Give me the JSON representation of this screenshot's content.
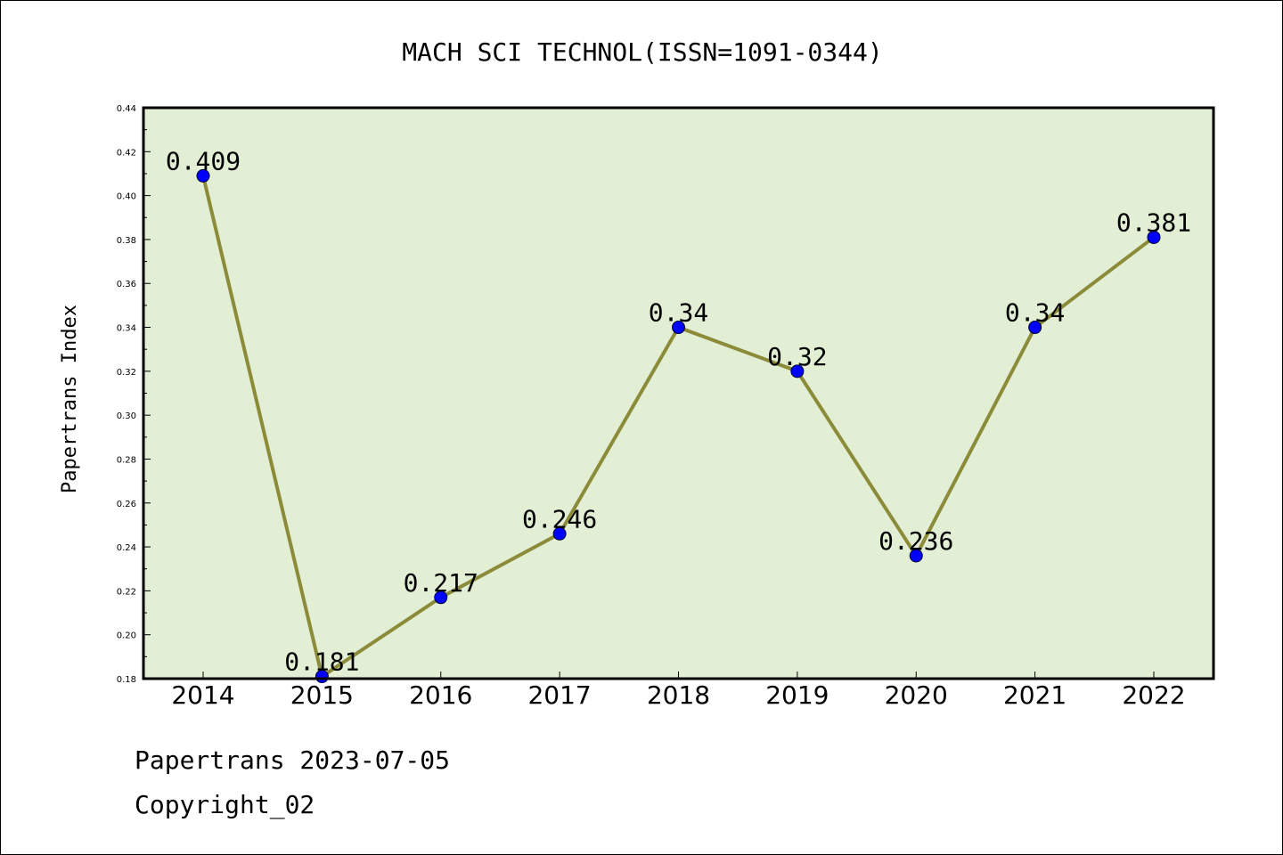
{
  "chart_data": {
    "type": "line",
    "title": "MACH SCI TECHNOL(ISSN=1091-0344)",
    "xlabel": "",
    "ylabel": "Papertrans Index",
    "categories": [
      "2014",
      "2015",
      "2016",
      "2017",
      "2018",
      "2019",
      "2020",
      "2021",
      "2022"
    ],
    "values": [
      0.409,
      0.181,
      0.217,
      0.246,
      0.34,
      0.32,
      0.236,
      0.34,
      0.381
    ],
    "data_labels": [
      "0.409",
      "0.181",
      "0.217",
      "0.246",
      "0.34",
      "0.32",
      "0.236",
      "0.34",
      "0.381"
    ],
    "ylim": [
      0.18,
      0.44
    ],
    "yticks": [
      "0.18",
      "0.20",
      "0.22",
      "0.24",
      "0.26",
      "0.28",
      "0.30",
      "0.32",
      "0.34",
      "0.36",
      "0.38",
      "0.40",
      "0.42",
      "0.44"
    ],
    "grid": false,
    "colors": {
      "plot_background": "#e2efd4",
      "line": "#8b8b3a",
      "marker": "#0000ff"
    }
  },
  "footer": {
    "date_line": "Papertrans 2023-07-05",
    "copyright": "Copyright_02"
  }
}
